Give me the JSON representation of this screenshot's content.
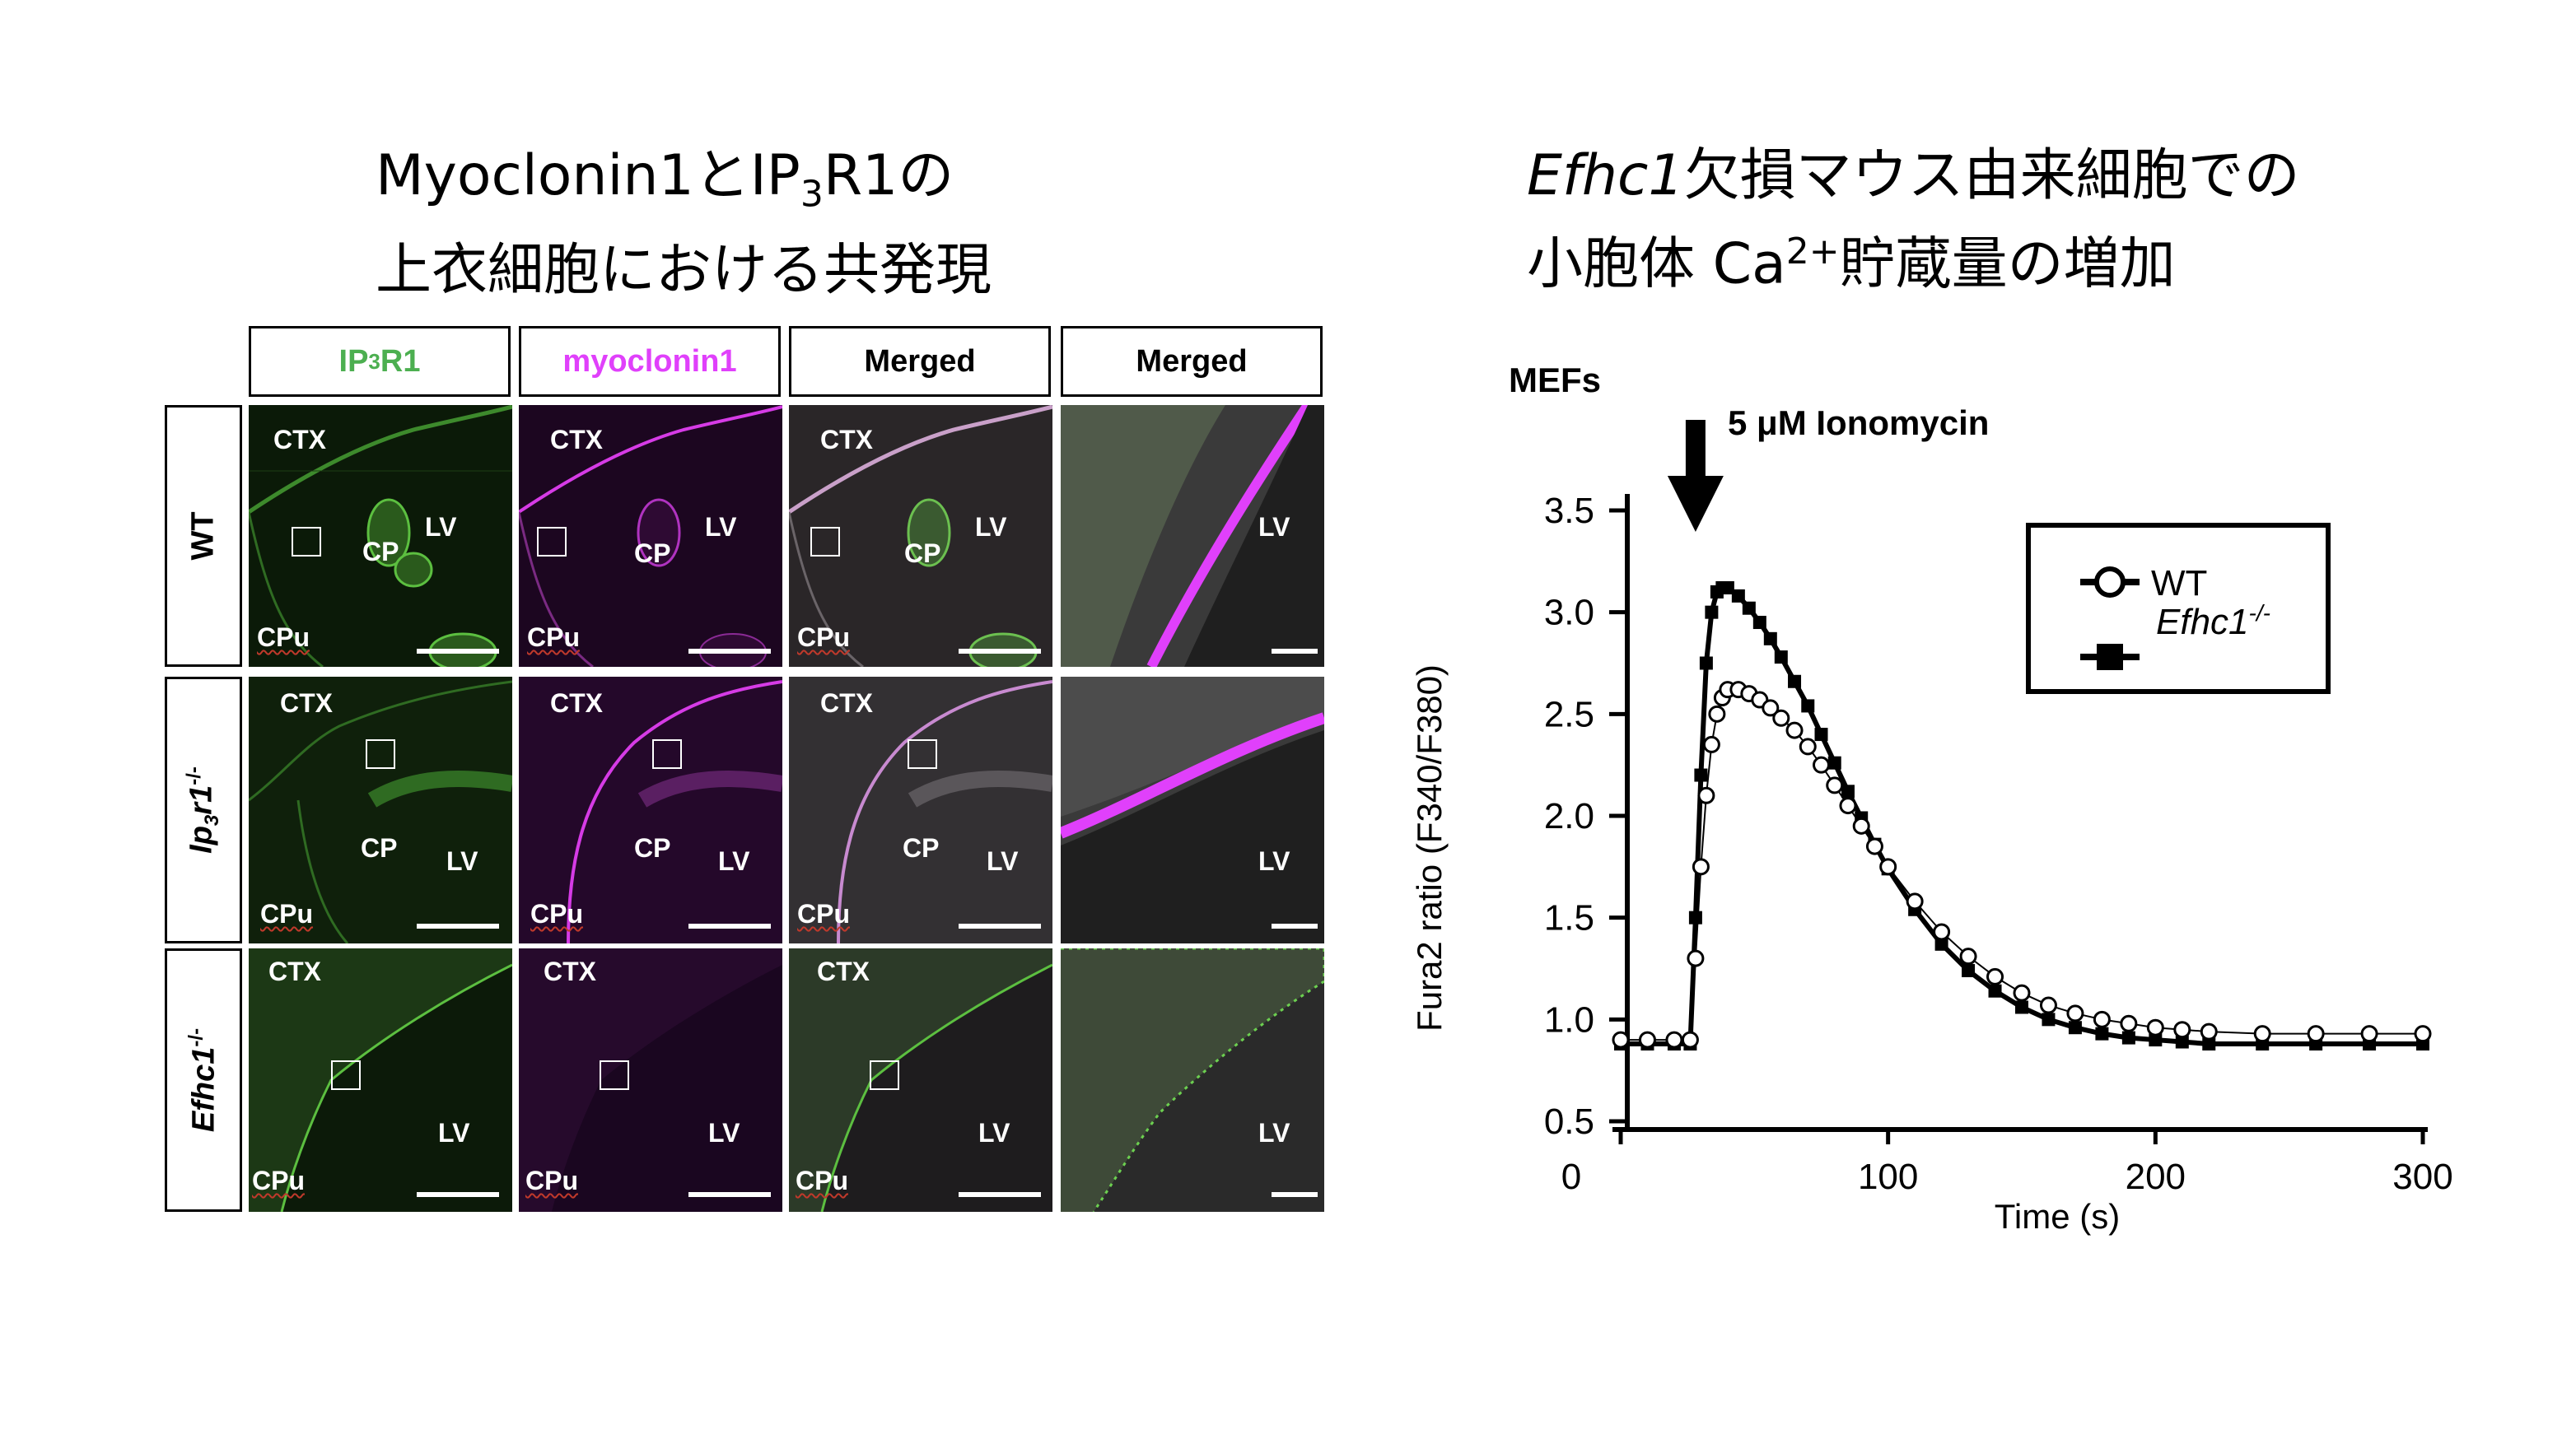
{
  "left_title": {
    "line1_a": "Myoclonin1とIP",
    "line1_sub": "3",
    "line1_b": "R1の",
    "line2": "上衣細胞における共発現"
  },
  "right_title": {
    "line1_italic": "Efhc1",
    "line1_rest": "欠損マウス由来細胞での",
    "line2_a": "小胞体 Ca",
    "line2_sup": "2+",
    "line2_b": "貯蔵量の増加"
  },
  "columns": [
    {
      "pre": "IP",
      "sub": "3",
      "post": "R1",
      "color": "#4caf50"
    },
    {
      "pre": "myoclonin1",
      "sub": "",
      "post": "",
      "color": "#e040fb"
    },
    {
      "pre": "Merged",
      "sub": "",
      "post": "",
      "color": "#000000"
    },
    {
      "pre": "Merged",
      "sub": "",
      "post": "",
      "color": "#000000"
    }
  ],
  "rows": [
    {
      "pre": "WT",
      "sub": "",
      "sup": ""
    },
    {
      "pre": "Ip",
      "sub": "3",
      "mid": "r1",
      "sup": "-/-"
    },
    {
      "pre": "Efhc1",
      "sub": "",
      "mid": "",
      "sup": "-/-"
    }
  ],
  "panel_labels": {
    "ctx": "CTX",
    "cp": "CP",
    "lv": "LV",
    "cpu": "CPu"
  },
  "chart_data": {
    "type": "line",
    "title": "MEFs",
    "annotation": "5 μM Ionomycin",
    "xlabel": "Time (s)",
    "ylabel": "Fura2 ratio (F340/F380)",
    "xlim": [
      0,
      300
    ],
    "ylim": [
      0.5,
      3.5
    ],
    "xticks": [
      0,
      100,
      200,
      300
    ],
    "yticks": [
      3.5,
      3.0,
      2.5,
      2.0,
      1.5,
      1.0,
      0.5
    ],
    "legend": "top-right",
    "series": [
      {
        "name": "WT",
        "marker": "open-circle",
        "x": [
          0,
          10,
          20,
          26,
          28,
          30,
          32,
          34,
          36,
          38,
          40,
          44,
          48,
          52,
          56,
          60,
          65,
          70,
          75,
          80,
          85,
          90,
          95,
          100,
          110,
          120,
          130,
          140,
          150,
          160,
          170,
          180,
          190,
          200,
          210,
          220,
          240,
          260,
          280,
          300
        ],
        "y": [
          0.9,
          0.9,
          0.9,
          0.9,
          1.3,
          1.75,
          2.1,
          2.35,
          2.5,
          2.58,
          2.62,
          2.62,
          2.6,
          2.57,
          2.53,
          2.48,
          2.42,
          2.34,
          2.25,
          2.15,
          2.05,
          1.95,
          1.85,
          1.75,
          1.58,
          1.43,
          1.31,
          1.21,
          1.13,
          1.07,
          1.03,
          1.0,
          0.98,
          0.96,
          0.95,
          0.94,
          0.93,
          0.93,
          0.93,
          0.93
        ]
      },
      {
        "name": "Efhc1-/-",
        "name_pre": "Efhc1",
        "name_sup": "-/-",
        "marker": "filled-square",
        "x": [
          0,
          10,
          20,
          26,
          28,
          30,
          32,
          34,
          36,
          38,
          40,
          44,
          48,
          52,
          56,
          60,
          65,
          70,
          75,
          80,
          85,
          90,
          95,
          100,
          110,
          120,
          130,
          140,
          150,
          160,
          170,
          180,
          190,
          200,
          210,
          220,
          240,
          260,
          280,
          300
        ],
        "y": [
          0.88,
          0.88,
          0.88,
          0.88,
          1.5,
          2.2,
          2.75,
          3.0,
          3.1,
          3.12,
          3.12,
          3.08,
          3.02,
          2.95,
          2.87,
          2.78,
          2.66,
          2.54,
          2.4,
          2.26,
          2.12,
          1.99,
          1.86,
          1.74,
          1.54,
          1.37,
          1.24,
          1.14,
          1.06,
          1.0,
          0.96,
          0.93,
          0.91,
          0.9,
          0.89,
          0.88,
          0.88,
          0.88,
          0.88,
          0.88
        ]
      }
    ]
  }
}
